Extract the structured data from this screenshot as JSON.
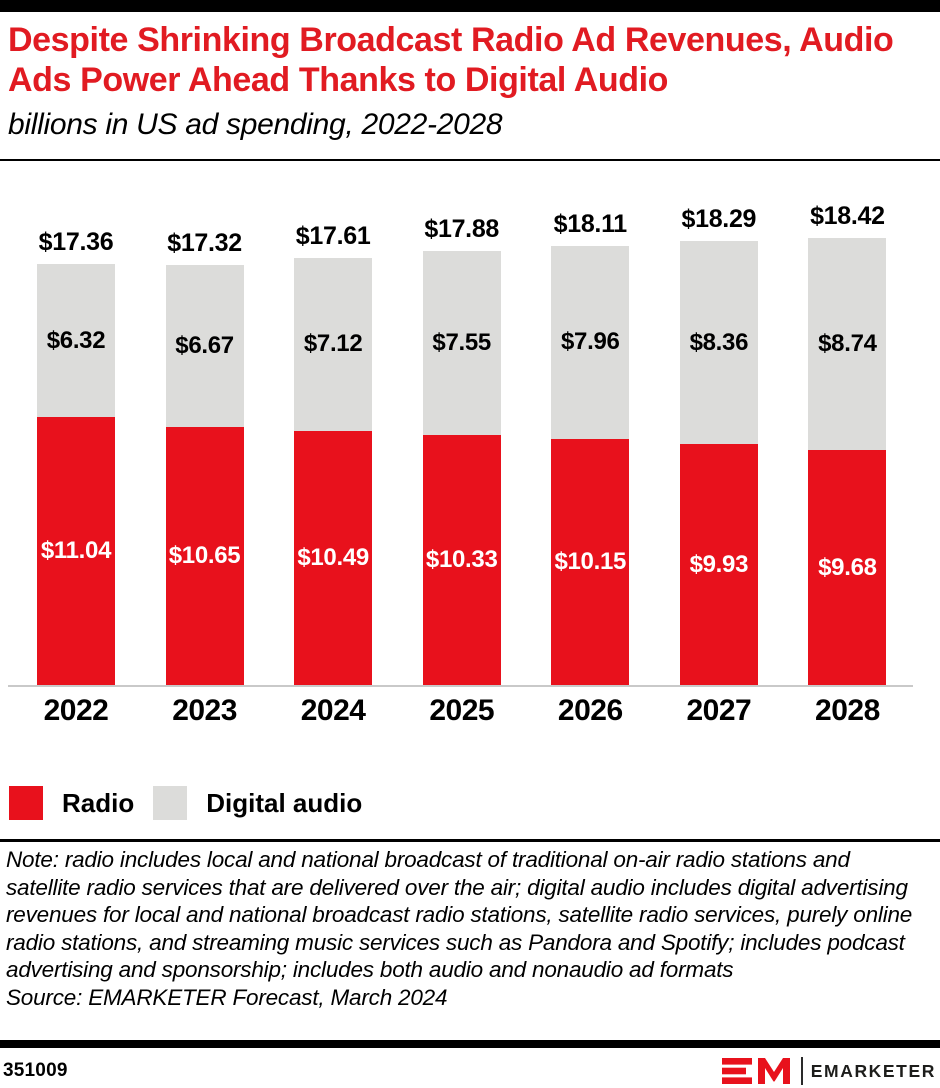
{
  "page": {
    "title": "Despite Shrinking Broadcast Radio Ad Revenues, Audio Ads Power Ahead Thanks to Digital Audio",
    "subtitle": "billions in US ad spending, 2022-2028",
    "note": "Note: radio includes local and national broadcast of traditional on-air radio stations and satellite radio services that are delivered over the air; digital audio includes digital advertising revenues for local and national broadcast radio stations, satellite radio services, purely online radio stations, and streaming music services such as Pandora and Spotify; includes podcast advertising and sponsorship; includes both audio and nonaudio ad formats",
    "source": "Source: EMARKETER Forecast, March 2024",
    "chart_id": "351009",
    "brand": "EMARKETER"
  },
  "colors": {
    "radio_red": "#e8111c",
    "digital_grey": "#dcdcda",
    "title_red": "#e11b22",
    "axis_line": "#c9c9c9",
    "bar_black": "#000000"
  },
  "legend": {
    "items": [
      {
        "label": "Radio",
        "color": "#e8111c"
      },
      {
        "label": "Digital audio",
        "color": "#dcdcda"
      }
    ]
  },
  "chart_data": {
    "type": "bar",
    "stacked": true,
    "title": "Despite Shrinking Broadcast Radio Ad Revenues, Audio Ads Power Ahead Thanks to Digital Audio",
    "subtitle": "billions in US ad spending, 2022-2028",
    "categories": [
      "2022",
      "2023",
      "2024",
      "2025",
      "2026",
      "2027",
      "2028"
    ],
    "series": [
      {
        "name": "Radio",
        "color": "#e8111c",
        "values": [
          11.04,
          10.65,
          10.49,
          10.33,
          10.15,
          9.93,
          9.68
        ]
      },
      {
        "name": "Digital audio",
        "color": "#dcdcda",
        "values": [
          6.32,
          6.67,
          7.12,
          7.55,
          7.96,
          8.36,
          8.74
        ]
      }
    ],
    "totals": [
      17.36,
      17.32,
      17.61,
      17.88,
      18.11,
      18.29,
      18.42
    ],
    "value_prefix": "$",
    "unit": "billions USD",
    "grid": false,
    "y_axis_visible": false,
    "legend_position": "bottom-left",
    "data_labels": "inside-segments-and-total-above-bar"
  }
}
